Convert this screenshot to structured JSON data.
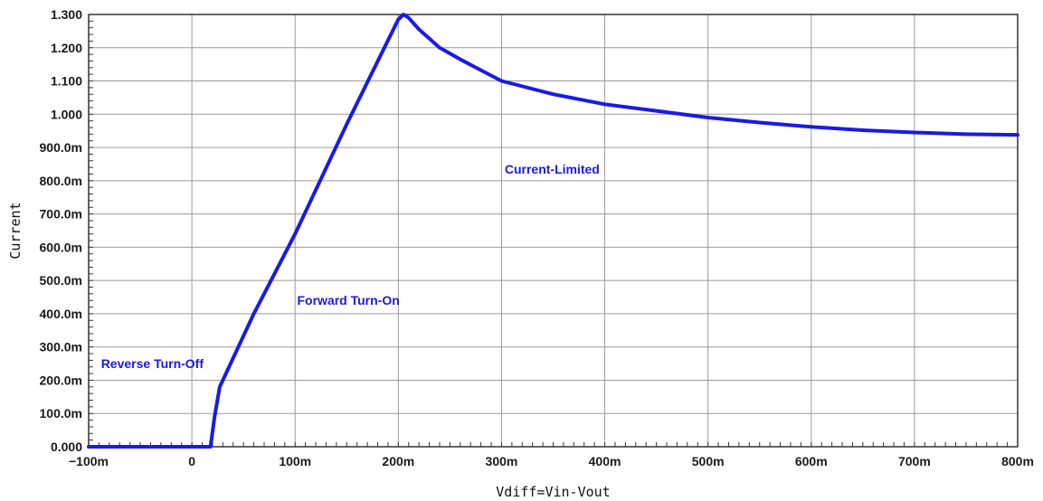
{
  "chart_data": {
    "type": "line",
    "xlabel": "Vdiff=Vin-Vout",
    "ylabel": "Current",
    "xlim": [
      -0.1,
      0.8
    ],
    "ylim": [
      0.0,
      1.3
    ],
    "grid": true,
    "x_ticks": [
      {
        "value": -0.1,
        "label": "−100m"
      },
      {
        "value": 0.0,
        "label": "0"
      },
      {
        "value": 0.1,
        "label": "100m"
      },
      {
        "value": 0.2,
        "label": "200m"
      },
      {
        "value": 0.3,
        "label": "300m"
      },
      {
        "value": 0.4,
        "label": "400m"
      },
      {
        "value": 0.5,
        "label": "500m"
      },
      {
        "value": 0.6,
        "label": "600m"
      },
      {
        "value": 0.7,
        "label": "700m"
      },
      {
        "value": 0.8,
        "label": "800m"
      }
    ],
    "y_ticks": [
      {
        "value": 0.0,
        "label": "0.000"
      },
      {
        "value": 0.1,
        "label": "100.0m"
      },
      {
        "value": 0.2,
        "label": "200.0m"
      },
      {
        "value": 0.3,
        "label": "300.0m"
      },
      {
        "value": 0.4,
        "label": "400.0m"
      },
      {
        "value": 0.5,
        "label": "500.0m"
      },
      {
        "value": 0.6,
        "label": "600.0m"
      },
      {
        "value": 0.7,
        "label": "700.0m"
      },
      {
        "value": 0.8,
        "label": "800.0m"
      },
      {
        "value": 0.9,
        "label": "900.0m"
      },
      {
        "value": 1.0,
        "label": "1.000"
      },
      {
        "value": 1.1,
        "label": "1.100"
      },
      {
        "value": 1.2,
        "label": "1.200"
      },
      {
        "value": 1.3,
        "label": "1.300"
      }
    ],
    "series": [
      {
        "color": "#1a1ae6",
        "x": [
          -0.1,
          0.0,
          0.018,
          0.022,
          0.027,
          0.06,
          0.1,
          0.15,
          0.2,
          0.205,
          0.21,
          0.22,
          0.24,
          0.26,
          0.3,
          0.35,
          0.4,
          0.45,
          0.5,
          0.55,
          0.6,
          0.65,
          0.7,
          0.75,
          0.8
        ],
        "y": [
          0.0,
          0.0,
          0.0,
          0.09,
          0.18,
          0.4,
          0.64,
          0.97,
          1.285,
          1.3,
          1.29,
          1.255,
          1.2,
          1.165,
          1.1,
          1.06,
          1.03,
          1.01,
          0.99,
          0.975,
          0.962,
          0.952,
          0.945,
          0.94,
          0.938
        ]
      }
    ],
    "annotations": [
      {
        "text": "Reverse Turn-Off",
        "x": -0.088,
        "y": 0.25,
        "color": "#1a1ae6"
      },
      {
        "text": "Forward Turn-On",
        "x": 0.102,
        "y": 0.44,
        "color": "#1a1ae6"
      },
      {
        "text": "Current-Limited",
        "x": 0.303,
        "y": 0.835,
        "color": "#1a1ae6"
      }
    ]
  },
  "colors": {
    "grid": "#9a9a9a",
    "axis": "#333333",
    "line": "#1a1ae6",
    "text": "#1a1a1a"
  }
}
